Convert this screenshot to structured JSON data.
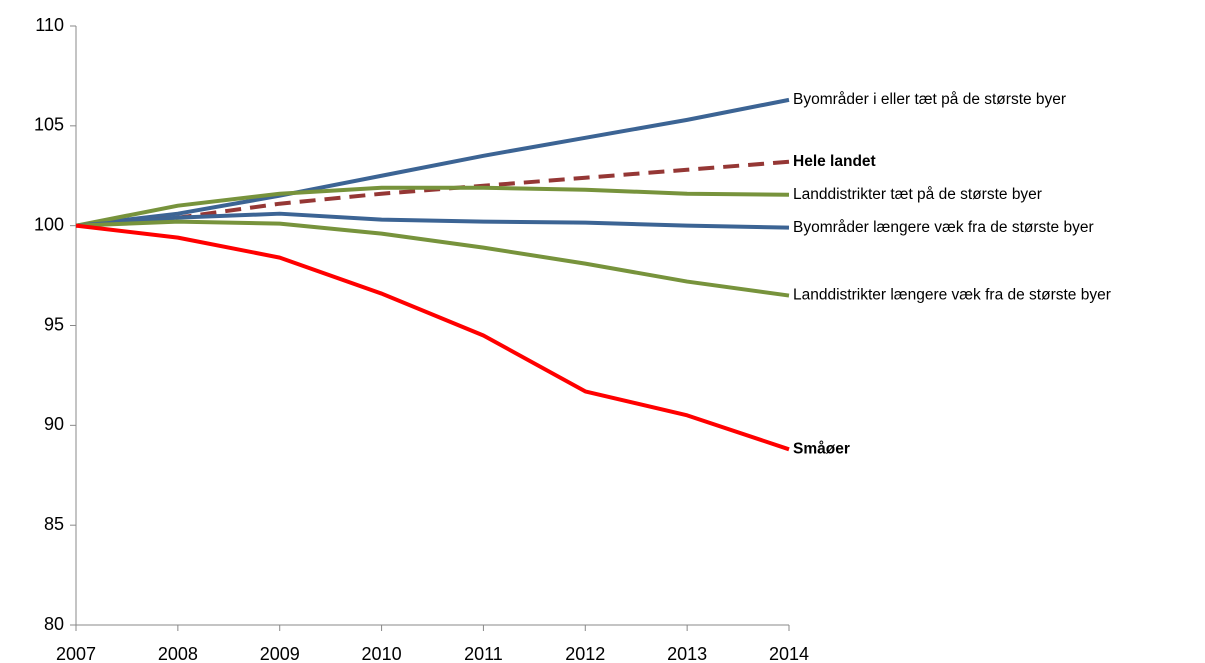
{
  "chart_data": {
    "type": "line",
    "x": [
      2007,
      2008,
      2009,
      2010,
      2011,
      2012,
      2013,
      2014
    ],
    "xlim": [
      2007,
      2014
    ],
    "xticks": [
      2007,
      2008,
      2009,
      2010,
      2011,
      2012,
      2013,
      2014
    ],
    "ylim": [
      80,
      110
    ],
    "yticks": [
      80,
      85,
      90,
      95,
      100,
      105,
      110
    ],
    "grid": false,
    "series": [
      {
        "name": "Byområder i eller tæt på de største byer",
        "color": "#3c6494",
        "dashed": false,
        "bold": false,
        "values": [
          100,
          100.6,
          101.5,
          102.5,
          103.5,
          104.4,
          105.3,
          106.3
        ]
      },
      {
        "name": "Hele landet",
        "color": "#953735",
        "dashed": true,
        "bold": true,
        "values": [
          100,
          100.4,
          101.1,
          101.6,
          102.0,
          102.4,
          102.8,
          103.2
        ]
      },
      {
        "name": "Landdistrikter tæt på de største byer",
        "color": "#77933c",
        "dashed": false,
        "bold": false,
        "values": [
          100,
          101.0,
          101.6,
          101.9,
          101.9,
          101.8,
          101.6,
          101.55
        ]
      },
      {
        "name": "Byområder længere væk fra de største byer",
        "color": "#3c6494",
        "dashed": false,
        "bold": false,
        "values": [
          100,
          100.4,
          100.6,
          100.3,
          100.2,
          100.15,
          100.0,
          99.9
        ]
      },
      {
        "name": "Landdistrikter længere væk fra de største byer",
        "color": "#77933c",
        "dashed": false,
        "bold": false,
        "values": [
          100,
          100.2,
          100.1,
          99.6,
          98.9,
          98.1,
          97.2,
          96.5
        ]
      },
      {
        "name": "Småøer",
        "color": "#ff0000",
        "dashed": false,
        "bold": true,
        "values": [
          100,
          99.4,
          98.4,
          96.6,
          94.5,
          91.7,
          90.5,
          88.8
        ]
      }
    ]
  }
}
